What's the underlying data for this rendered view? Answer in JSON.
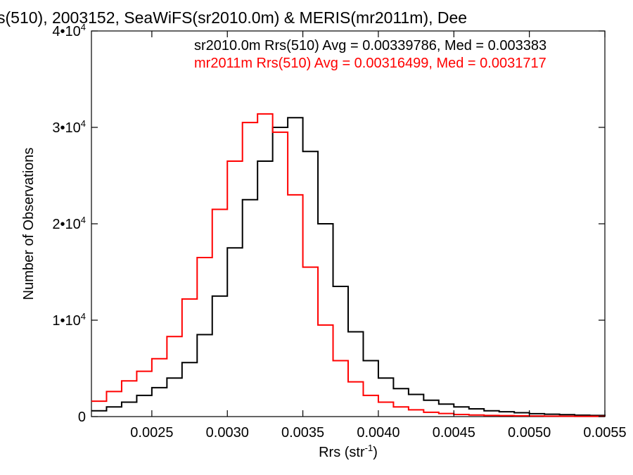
{
  "colors": {
    "series_1": "#000000",
    "series_2": "#ff0000",
    "axes": "#000000",
    "background": "#ffffff"
  },
  "chart_data": {
    "type": "line",
    "title": "s(510), 2003152, SeaWiFS(sr2010.0m) & MERIS(mr2011m), Dee",
    "xlabel": "Rrs (str",
    "xlabel_sup": "-1",
    "xlabel_end": ")",
    "ylabel": "Number of Observations",
    "xlim": [
      0.0021,
      0.0055
    ],
    "ylim": [
      0,
      40000
    ],
    "grid": false,
    "legend_position": "top-right",
    "x_ticks": [
      {
        "value": 0.0025,
        "label": "0.0025"
      },
      {
        "value": 0.003,
        "label": "0.0030"
      },
      {
        "value": 0.0035,
        "label": "0.0035"
      },
      {
        "value": 0.004,
        "label": "0.0040"
      },
      {
        "value": 0.0045,
        "label": "0.0045"
      },
      {
        "value": 0.005,
        "label": "0.0050"
      },
      {
        "value": 0.0055,
        "label": "0.0055"
      }
    ],
    "y_ticks": [
      {
        "value": 0,
        "base": "0",
        "exp": ""
      },
      {
        "value": 10000,
        "base": "1•10",
        "exp": "4"
      },
      {
        "value": 20000,
        "base": "2•10",
        "exp": "4"
      },
      {
        "value": 30000,
        "base": "3•10",
        "exp": "4"
      },
      {
        "value": 40000,
        "base": "4•10",
        "exp": "4"
      }
    ],
    "series": [
      {
        "name": "sr2010.0m Rrs(510) Avg = 0.00339786, Med = 0.003383",
        "color": "#000000",
        "x": [
          0.0021,
          0.0022,
          0.0023,
          0.0024,
          0.0025,
          0.0026,
          0.0027,
          0.0028,
          0.0029,
          0.003,
          0.0031,
          0.0032,
          0.0033,
          0.0034,
          0.0035,
          0.0036,
          0.0037,
          0.0038,
          0.0039,
          0.004,
          0.0041,
          0.0042,
          0.0043,
          0.0044,
          0.0045,
          0.0046,
          0.0047,
          0.0048,
          0.0049,
          0.005,
          0.0051,
          0.0052,
          0.0053,
          0.0054,
          0.0055
        ],
        "y": [
          600,
          1000,
          1500,
          2200,
          3000,
          4000,
          5600,
          8500,
          12500,
          17500,
          22500,
          26500,
          30000,
          31000,
          27500,
          20000,
          13500,
          8800,
          5800,
          4000,
          2900,
          2300,
          1700,
          1300,
          1000,
          800,
          600,
          500,
          400,
          300,
          250,
          200,
          150,
          120,
          100
        ]
      },
      {
        "name": "mr2011m Rrs(510) Avg = 0.00316499, Med = 0.0031717",
        "color": "#ff0000",
        "x": [
          0.0021,
          0.0022,
          0.0023,
          0.0024,
          0.0025,
          0.0026,
          0.0027,
          0.0028,
          0.0029,
          0.003,
          0.0031,
          0.0032,
          0.0033,
          0.0034,
          0.0035,
          0.0036,
          0.0037,
          0.0038,
          0.0039,
          0.004,
          0.0041,
          0.0042,
          0.0043,
          0.0044,
          0.0045,
          0.0046,
          0.0047,
          0.0048,
          0.0049,
          0.005,
          0.0051,
          0.0052,
          0.0053,
          0.0054,
          0.0055
        ],
        "y": [
          1600,
          2600,
          3700,
          4700,
          6000,
          8300,
          12200,
          16500,
          21500,
          26500,
          30500,
          31400,
          29500,
          23000,
          15500,
          9500,
          5800,
          3600,
          2200,
          1500,
          1000,
          700,
          450,
          320,
          220,
          160,
          120,
          100,
          80,
          60,
          50,
          40,
          30,
          25,
          20
        ]
      }
    ]
  }
}
